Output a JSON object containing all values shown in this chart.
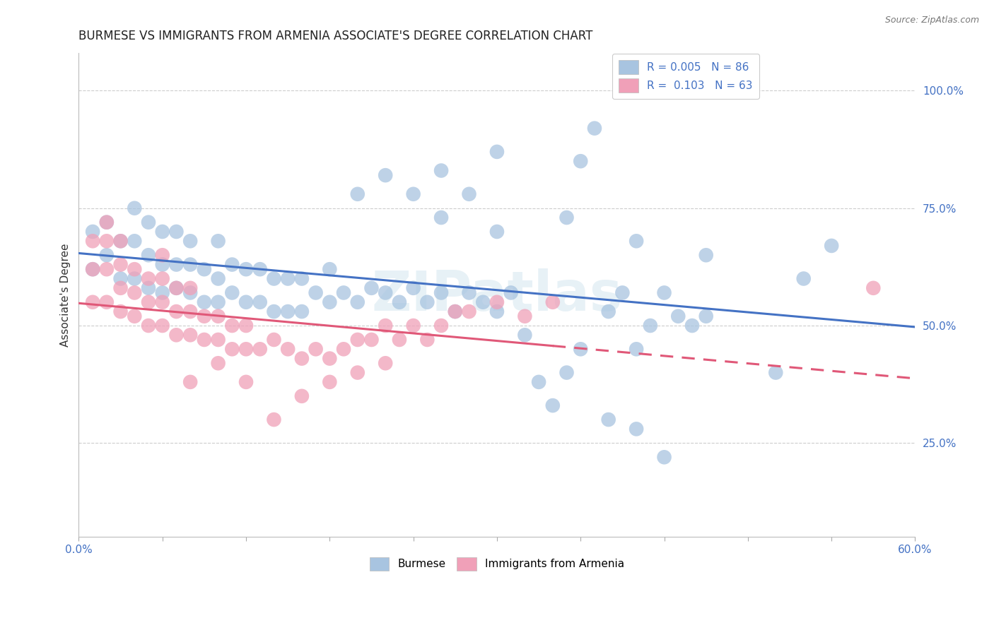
{
  "title": "BURMESE VS IMMIGRANTS FROM ARMENIA ASSOCIATE'S DEGREE CORRELATION CHART",
  "source_text": "Source: ZipAtlas.com",
  "ylabel": "Associate's Degree",
  "xlim": [
    0.0,
    0.6
  ],
  "ylim": [
    0.05,
    1.08
  ],
  "blue_color": "#a8c4e0",
  "pink_color": "#f0a0b8",
  "blue_line_color": "#4472c4",
  "pink_line_color": "#e05878",
  "legend_R_color": "#4472c4",
  "watermark": "ZIPatlas",
  "blue_R": 0.005,
  "blue_N": 86,
  "pink_R": 0.103,
  "pink_N": 63,
  "grid_color": "#cccccc",
  "bg_color": "#ffffff",
  "title_fontsize": 12,
  "label_fontsize": 11,
  "tick_fontsize": 11,
  "tick_color": "#4472c4",
  "blue_x": [
    0.01,
    0.01,
    0.02,
    0.02,
    0.03,
    0.03,
    0.04,
    0.04,
    0.04,
    0.05,
    0.05,
    0.05,
    0.06,
    0.06,
    0.06,
    0.07,
    0.07,
    0.07,
    0.08,
    0.08,
    0.08,
    0.09,
    0.09,
    0.1,
    0.1,
    0.1,
    0.11,
    0.11,
    0.12,
    0.12,
    0.13,
    0.13,
    0.14,
    0.14,
    0.15,
    0.15,
    0.16,
    0.16,
    0.17,
    0.18,
    0.18,
    0.19,
    0.2,
    0.21,
    0.22,
    0.23,
    0.24,
    0.25,
    0.26,
    0.27,
    0.28,
    0.29,
    0.3,
    0.31,
    0.32,
    0.33,
    0.34,
    0.35,
    0.36,
    0.37,
    0.38,
    0.39,
    0.4,
    0.41,
    0.42,
    0.43,
    0.44,
    0.45,
    0.2,
    0.22,
    0.24,
    0.26,
    0.28,
    0.3,
    0.35,
    0.4,
    0.45,
    0.5,
    0.52,
    0.54,
    0.38,
    0.4,
    0.42,
    0.26,
    0.3,
    0.36
  ],
  "blue_y": [
    0.62,
    0.7,
    0.65,
    0.72,
    0.6,
    0.68,
    0.6,
    0.68,
    0.75,
    0.58,
    0.65,
    0.72,
    0.57,
    0.63,
    0.7,
    0.58,
    0.63,
    0.7,
    0.57,
    0.63,
    0.68,
    0.55,
    0.62,
    0.55,
    0.6,
    0.68,
    0.57,
    0.63,
    0.55,
    0.62,
    0.55,
    0.62,
    0.53,
    0.6,
    0.53,
    0.6,
    0.53,
    0.6,
    0.57,
    0.55,
    0.62,
    0.57,
    0.55,
    0.58,
    0.57,
    0.55,
    0.58,
    0.55,
    0.57,
    0.53,
    0.57,
    0.55,
    0.53,
    0.57,
    0.48,
    0.38,
    0.33,
    0.4,
    0.45,
    0.92,
    0.53,
    0.57,
    0.45,
    0.5,
    0.57,
    0.52,
    0.5,
    0.52,
    0.78,
    0.82,
    0.78,
    0.73,
    0.78,
    0.7,
    0.73,
    0.68,
    0.65,
    0.4,
    0.6,
    0.67,
    0.3,
    0.28,
    0.22,
    0.83,
    0.87,
    0.85
  ],
  "pink_x": [
    0.01,
    0.01,
    0.01,
    0.02,
    0.02,
    0.02,
    0.02,
    0.03,
    0.03,
    0.03,
    0.03,
    0.04,
    0.04,
    0.04,
    0.05,
    0.05,
    0.05,
    0.06,
    0.06,
    0.06,
    0.06,
    0.07,
    0.07,
    0.07,
    0.08,
    0.08,
    0.08,
    0.09,
    0.09,
    0.1,
    0.1,
    0.11,
    0.11,
    0.12,
    0.12,
    0.13,
    0.14,
    0.15,
    0.16,
    0.17,
    0.18,
    0.19,
    0.2,
    0.21,
    0.22,
    0.23,
    0.24,
    0.25,
    0.26,
    0.27,
    0.28,
    0.3,
    0.32,
    0.34,
    0.14,
    0.16,
    0.18,
    0.2,
    0.22,
    0.08,
    0.1,
    0.12,
    0.57
  ],
  "pink_y": [
    0.55,
    0.62,
    0.68,
    0.55,
    0.62,
    0.68,
    0.72,
    0.53,
    0.58,
    0.63,
    0.68,
    0.52,
    0.57,
    0.62,
    0.5,
    0.55,
    0.6,
    0.5,
    0.55,
    0.6,
    0.65,
    0.48,
    0.53,
    0.58,
    0.48,
    0.53,
    0.58,
    0.47,
    0.52,
    0.47,
    0.52,
    0.45,
    0.5,
    0.45,
    0.5,
    0.45,
    0.47,
    0.45,
    0.43,
    0.45,
    0.43,
    0.45,
    0.47,
    0.47,
    0.5,
    0.47,
    0.5,
    0.47,
    0.5,
    0.53,
    0.53,
    0.55,
    0.52,
    0.55,
    0.3,
    0.35,
    0.38,
    0.4,
    0.42,
    0.38,
    0.42,
    0.38,
    0.58
  ]
}
